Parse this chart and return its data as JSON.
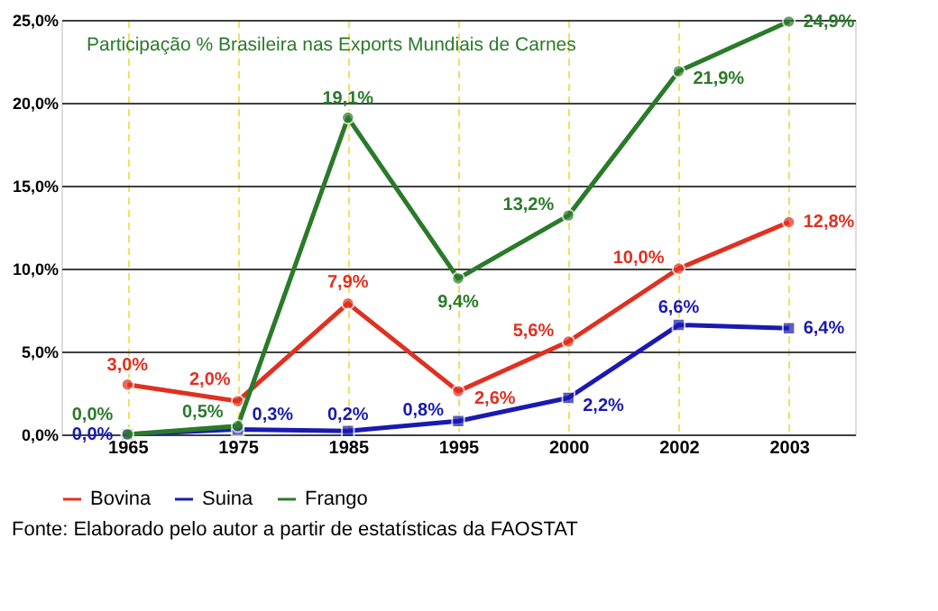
{
  "chart_data": {
    "type": "line",
    "title": "Participação % Brasileira nas Exports Mundiais de Carnes",
    "categories": [
      "1965",
      "1975",
      "1985",
      "1995",
      "2000",
      "2002",
      "2003"
    ],
    "series": [
      {
        "name": "Bovina",
        "color": "#e03020",
        "marker": "circle",
        "values": [
          3.0,
          2.0,
          7.9,
          2.6,
          5.6,
          10.0,
          12.8
        ],
        "value_labels": [
          "3,0%",
          "2,0%",
          "7,9%",
          "2,6%",
          "5,6%",
          "10,0%",
          "12,8%"
        ]
      },
      {
        "name": "Suina",
        "color": "#1a1ab0",
        "marker": "square",
        "values": [
          0.0,
          0.3,
          0.2,
          0.8,
          2.2,
          6.6,
          6.4
        ],
        "value_labels": [
          "0,0%",
          "0,3%",
          "0,2%",
          "0,8%",
          "2,2%",
          "6,6%",
          "6,4%"
        ]
      },
      {
        "name": "Frango",
        "color": "#2a7a2a",
        "marker": "circle",
        "values": [
          0.0,
          0.5,
          19.1,
          9.4,
          13.2,
          21.9,
          24.9
        ],
        "value_labels": [
          "0,0%",
          "0,5%",
          "19,1%",
          "9,4%",
          "13,2%",
          "21,9%",
          "24,9%"
        ]
      }
    ],
    "ylim": [
      0,
      25
    ],
    "yticks": [
      {
        "value": 0,
        "label": "0,0%"
      },
      {
        "value": 5,
        "label": "5,0%"
      },
      {
        "value": 10,
        "label": "10,0%"
      },
      {
        "value": 15,
        "label": "15,0%"
      },
      {
        "value": 20,
        "label": "20,0%"
      },
      {
        "value": 25,
        "label": "25,0%"
      }
    ],
    "grid": true,
    "legend": "bottom",
    "annotations": [
      "Fonte: Elaborado pelo autor a partir de estatísticas da FAOSTAT"
    ]
  }
}
